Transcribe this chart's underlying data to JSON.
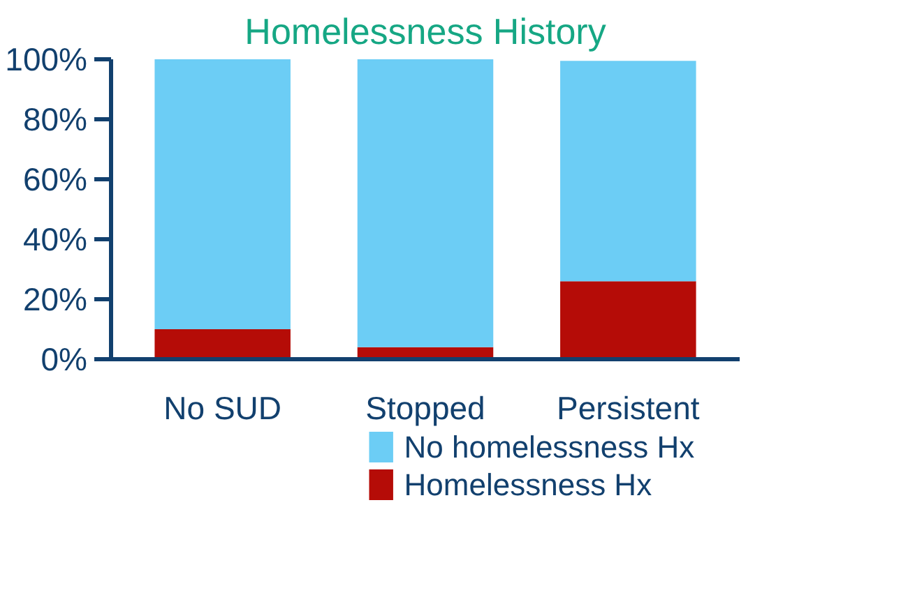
{
  "chart_data": {
    "type": "bar",
    "title": "Homelessness History",
    "categories": [
      "No SUD",
      "Stopped",
      "Persistent"
    ],
    "stacked": true,
    "series": [
      {
        "name": "Homelessness Hx",
        "color": "#b50c07",
        "values": [
          10,
          4,
          26
        ]
      },
      {
        "name": "No homelessness Hx",
        "color": "#6ccdf5",
        "values": [
          90,
          96,
          73.5
        ]
      }
    ],
    "ylim": [
      0,
      100
    ],
    "yticks": [
      {
        "value": 0,
        "label": "0%"
      },
      {
        "value": 20,
        "label": "20%"
      },
      {
        "value": 40,
        "label": "40%"
      },
      {
        "value": 60,
        "label": "60%"
      },
      {
        "value": 80,
        "label": "80%"
      },
      {
        "value": 100,
        "label": "100%"
      }
    ],
    "grid": false,
    "legend": "bottom"
  }
}
